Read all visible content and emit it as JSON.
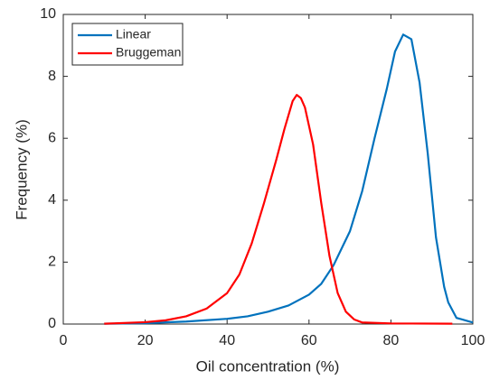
{
  "chart_data": {
    "type": "line",
    "xlabel": "Oil concentration (%)",
    "ylabel": "Frequency (%)",
    "xlim": [
      0,
      100
    ],
    "xticks": [
      0,
      20,
      40,
      60,
      80,
      100
    ],
    "ylim": [
      0,
      10
    ],
    "yticks": [
      0,
      2,
      4,
      6,
      8,
      10
    ],
    "grid": false,
    "legend": "upper left",
    "series": [
      {
        "name": "Linear",
        "color": "#0072bd",
        "x": [
          10,
          20,
          30,
          40,
          45,
          50,
          55,
          60,
          63,
          66,
          70,
          73,
          76,
          79,
          81,
          83,
          85,
          87,
          89,
          91,
          93,
          94,
          96,
          100
        ],
        "values": [
          0.01,
          0.03,
          0.08,
          0.17,
          0.25,
          0.4,
          0.6,
          0.95,
          1.3,
          1.9,
          3.0,
          4.3,
          6.0,
          7.6,
          8.8,
          9.35,
          9.2,
          7.8,
          5.5,
          2.8,
          1.2,
          0.7,
          0.2,
          0.05
        ]
      },
      {
        "name": "Bruggeman",
        "color": "#ff0000",
        "x": [
          10,
          20,
          25,
          30,
          35,
          40,
          43,
          46,
          49,
          52,
          54,
          56,
          57,
          58,
          59,
          61,
          63,
          65,
          67,
          69,
          71,
          73,
          80,
          95
        ],
        "values": [
          0.01,
          0.06,
          0.12,
          0.25,
          0.5,
          1.0,
          1.6,
          2.6,
          3.9,
          5.3,
          6.3,
          7.2,
          7.4,
          7.3,
          7.0,
          5.8,
          3.9,
          2.2,
          1.0,
          0.4,
          0.15,
          0.05,
          0.02,
          0.01
        ]
      }
    ]
  }
}
